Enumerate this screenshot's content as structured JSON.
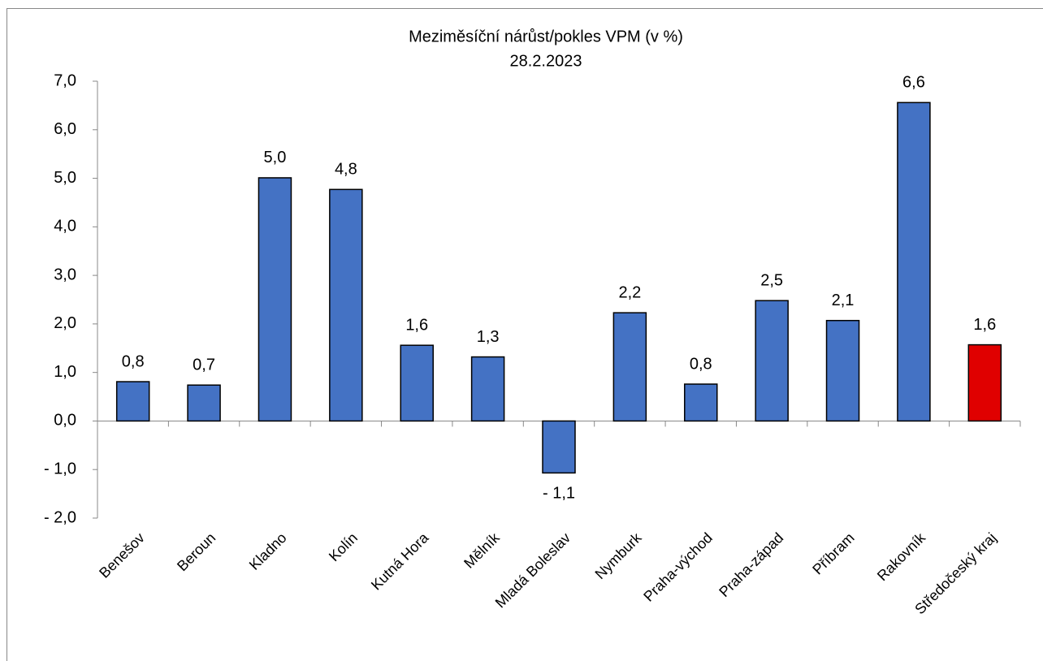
{
  "chart_data": {
    "type": "bar",
    "title": "Meziměsíční nárůst/pokles VPM (v %)",
    "subtitle": "28.2.2023",
    "categories": [
      "Benešov",
      "Beroun",
      "Kladno",
      "Kolín",
      "Kutná Hora",
      "Mělník",
      "Mladá Boleslav",
      "Nymburk",
      "Praha-východ",
      "Praha-západ",
      "Příbram",
      "Rakovník",
      "Středočeský kraj"
    ],
    "values": [
      0.81,
      0.74,
      5.01,
      4.77,
      1.56,
      1.32,
      -1.07,
      2.23,
      0.76,
      2.48,
      2.07,
      6.56,
      1.57
    ],
    "value_labels": [
      "0,8",
      "0,7",
      "5,0",
      "4,8",
      "1,6",
      "1,3",
      "- 1,1",
      "2,2",
      "0,8",
      "2,5",
      "2,1",
      "6,6",
      "1,6"
    ],
    "colors": [
      "#4472c4",
      "#4472c4",
      "#4472c4",
      "#4472c4",
      "#4472c4",
      "#4472c4",
      "#4472c4",
      "#4472c4",
      "#4472c4",
      "#4472c4",
      "#4472c4",
      "#4472c4",
      "#e00000"
    ],
    "ylim": [
      -2,
      7
    ],
    "yticks": [
      {
        "value": -2,
        "label": "- 2,0"
      },
      {
        "value": -1,
        "label": "- 1,0"
      },
      {
        "value": 0,
        "label": "0,0"
      },
      {
        "value": 1,
        "label": "1,0"
      },
      {
        "value": 2,
        "label": "2,0"
      },
      {
        "value": 3,
        "label": "3,0"
      },
      {
        "value": 4,
        "label": "4,0"
      },
      {
        "value": 5,
        "label": "5,0"
      },
      {
        "value": 6,
        "label": "6,0"
      },
      {
        "value": 7,
        "label": "7,0"
      }
    ],
    "grid": false
  }
}
